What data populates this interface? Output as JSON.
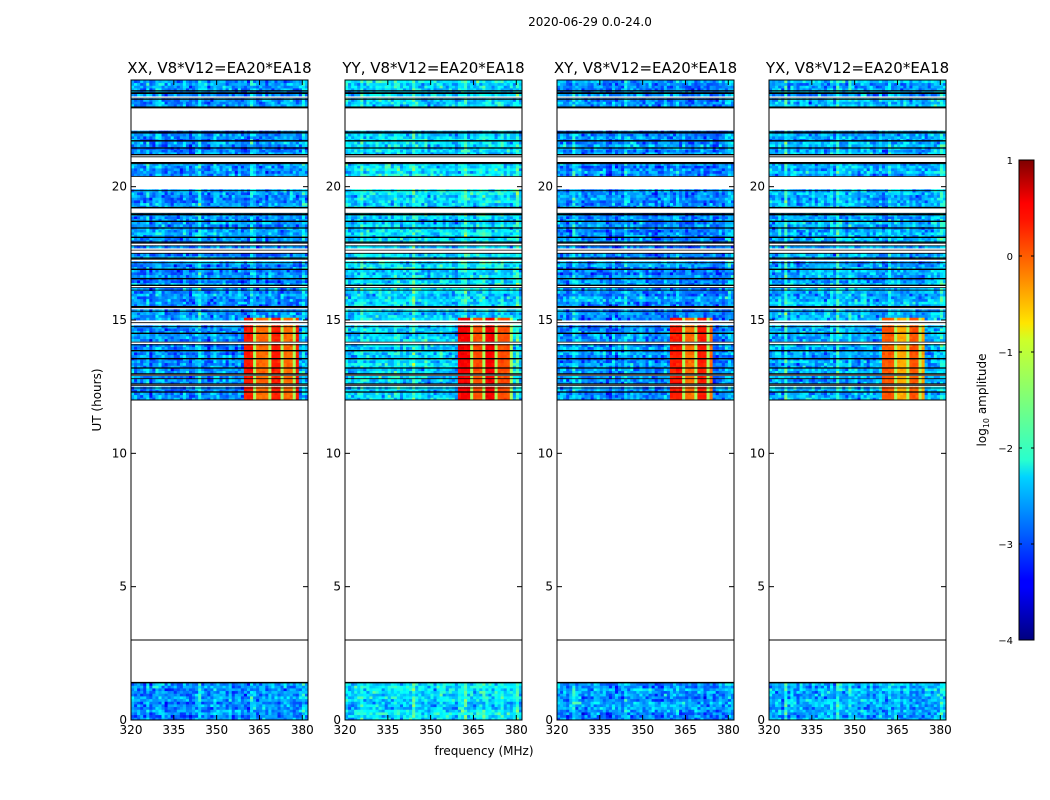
{
  "figure": {
    "suptitle": "2020-06-29 0.0-24.0",
    "xlabel": "frequency (MHz)",
    "ylabel": "UT (hours)"
  },
  "colorbar": {
    "label_prefix": "log",
    "label_sub": "10",
    "label_suffix": " amplitude",
    "ticks": [
      1,
      0,
      -1,
      -2,
      -3,
      -4
    ],
    "tick_labels": [
      "1",
      "0",
      "−1",
      "−2",
      "−3",
      "−4"
    ],
    "range": [
      -4,
      1
    ],
    "colormap": "jet"
  },
  "chart_data": {
    "type": "heatmap",
    "x": {
      "range": [
        320,
        382
      ],
      "ticks": [
        320,
        335,
        350,
        365,
        380
      ],
      "tick_labels": [
        "320",
        "335",
        "350",
        "365",
        "380"
      ]
    },
    "y": {
      "range": [
        0,
        24
      ],
      "ticks": [
        0,
        5,
        10,
        15,
        20
      ],
      "tick_labels": [
        "0",
        "5",
        "10",
        "15",
        "20"
      ]
    },
    "data_hours": [
      [
        0.0,
        1.4
      ],
      [
        12.0,
        24.0
      ]
    ],
    "data_gap_marker_hour": 3.0,
    "rfi_band_hours": [
      12.0,
      15.0
    ],
    "rfi_band_freqs_mhz": [
      360,
      379
    ],
    "panels": [
      {
        "title": "XX, V8*V12=EA20*EA18",
        "polarization": "XX",
        "rfi_band_freqs_mhz": [
          359.5,
          378.5
        ],
        "baseline_level": -2.7,
        "rfi_level": 0.1
      },
      {
        "title": "YY, V8*V12=EA20*EA18",
        "polarization": "YY",
        "rfi_band_freqs_mhz": [
          360,
          378.5
        ],
        "baseline_level": -2.3,
        "rfi_level": 0.25
      },
      {
        "title": "XY, V8*V12=EA20*EA18",
        "polarization": "XY",
        "rfi_band_freqs_mhz": [
          360,
          375
        ],
        "baseline_level": -2.7,
        "rfi_level": 0.1
      },
      {
        "title": "YX, V8*V12=EA20*EA18",
        "polarization": "YX",
        "rfi_band_freqs_mhz": [
          360,
          374.5
        ],
        "baseline_level": -2.5,
        "rfi_level": -0.2
      }
    ]
  }
}
